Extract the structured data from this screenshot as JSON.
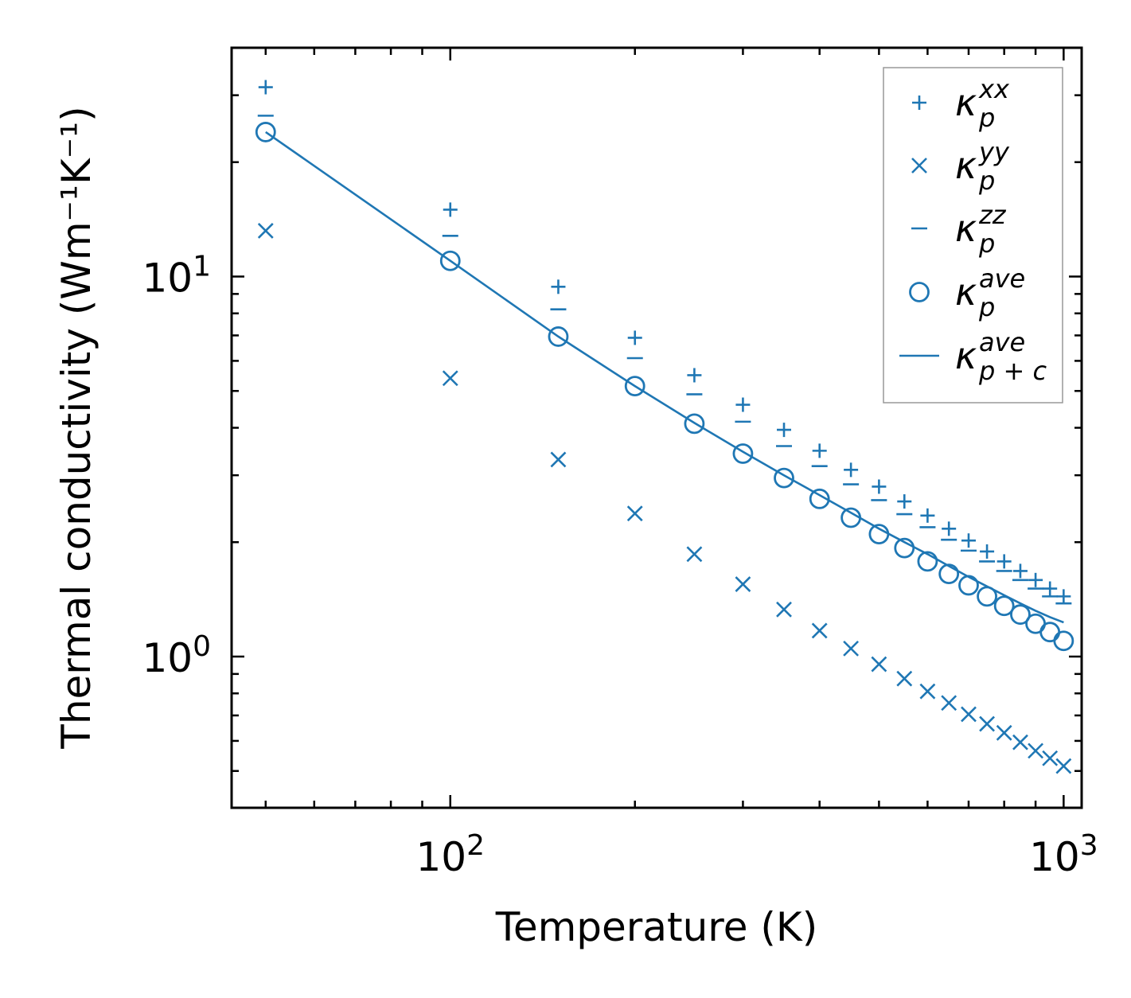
{
  "chart_data": {
    "type": "scatter",
    "xscale": "log",
    "yscale": "log",
    "xlabel": "Temperature (K)",
    "ylabel": "Thermal conductivity (Wm⁻¹K⁻¹)",
    "xlim": [
      44,
      1070
    ],
    "ylim": [
      0.4,
      40
    ],
    "x_ticks": [
      {
        "value": 100,
        "base": "10",
        "exp": "2"
      },
      {
        "value": 1000,
        "base": "10",
        "exp": "3"
      }
    ],
    "y_ticks": [
      {
        "value": 1,
        "base": "10",
        "exp": "0"
      },
      {
        "value": 10,
        "base": "10",
        "exp": "1"
      }
    ],
    "color": "#1f77b4",
    "legend_position": "top-right",
    "x": [
      50,
      100,
      150,
      200,
      250,
      300,
      350,
      400,
      450,
      500,
      550,
      600,
      650,
      700,
      750,
      800,
      850,
      900,
      950,
      1000
    ],
    "series": [
      {
        "name": "kxx",
        "marker": "plus",
        "label_base": "κ",
        "label_sub": "p",
        "label_sup": "xx",
        "values": [
          31.5,
          15.0,
          9.4,
          6.9,
          5.5,
          4.6,
          3.95,
          3.48,
          3.1,
          2.8,
          2.56,
          2.35,
          2.17,
          2.02,
          1.89,
          1.78,
          1.68,
          1.59,
          1.51,
          1.44
        ]
      },
      {
        "name": "kyy",
        "marker": "x",
        "label_base": "κ",
        "label_sub": "p",
        "label_sup": "yy",
        "values": [
          13.2,
          5.4,
          3.3,
          2.38,
          1.86,
          1.55,
          1.33,
          1.17,
          1.05,
          0.955,
          0.875,
          0.81,
          0.755,
          0.705,
          0.665,
          0.63,
          0.595,
          0.565,
          0.54,
          0.515
        ]
      },
      {
        "name": "kzz",
        "marker": "minus",
        "label_base": "κ",
        "label_sub": "p",
        "label_sup": "zz",
        "values": [
          26.5,
          12.8,
          8.2,
          6.1,
          4.9,
          4.15,
          3.58,
          3.17,
          2.84,
          2.58,
          2.37,
          2.19,
          2.03,
          1.9,
          1.78,
          1.68,
          1.59,
          1.51,
          1.44,
          1.38
        ]
      },
      {
        "name": "kave",
        "marker": "circle",
        "label_base": "κ",
        "label_sub": "p",
        "label_sup": "ave",
        "values": [
          24.0,
          11.0,
          6.95,
          5.15,
          4.1,
          3.42,
          2.95,
          2.6,
          2.32,
          2.1,
          1.93,
          1.78,
          1.65,
          1.54,
          1.44,
          1.36,
          1.29,
          1.22,
          1.16,
          1.1
        ]
      },
      {
        "name": "kpc",
        "marker": "line",
        "label_base": "κ",
        "label_sub": "p + c",
        "label_sup": "ave",
        "values": [
          24.0,
          11.0,
          6.95,
          5.15,
          4.12,
          3.46,
          3.0,
          2.66,
          2.39,
          2.17,
          2.0,
          1.86,
          1.73,
          1.62,
          1.53,
          1.45,
          1.38,
          1.32,
          1.27,
          1.23
        ]
      }
    ]
  }
}
